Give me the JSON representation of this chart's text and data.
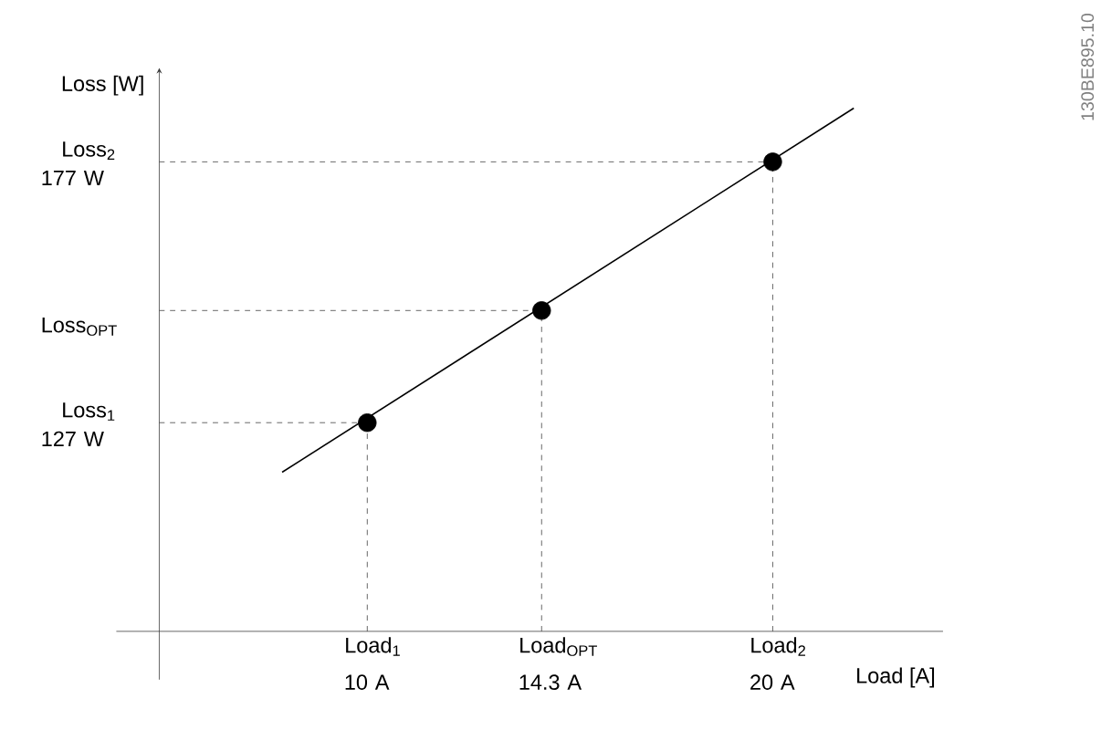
{
  "chart_data": {
    "type": "line",
    "xlabel": "Load [A]",
    "ylabel": "Loss [W]",
    "xlim": [
      4.87,
      24.2
    ],
    "ylim": [
      87,
      195
    ],
    "xticks": [
      {
        "value": 10,
        "label": "10 A"
      },
      {
        "value": 14.3,
        "label": "14.3 A"
      },
      {
        "value": 20,
        "label": "20 A"
      }
    ],
    "yticks": [
      {
        "value": 127,
        "label": "127 W"
      },
      {
        "value": 148.5,
        "label": "Loss$_{OPT}$"
      },
      {
        "value": 177,
        "label": "177 W"
      }
    ],
    "series": [
      {
        "color": "#000000",
        "x": [
          7.9,
          22.0
        ],
        "values": [
          117.5,
          187.3
        ],
        "marker": "none",
        "line_style": "solid"
      },
      {
        "type": "scatter",
        "color": "#000000",
        "x": [
          10,
          14.3,
          20
        ],
        "values": [
          127,
          148.5,
          177
        ],
        "marker": "circle"
      }
    ],
    "ref_lines": [
      {
        "axis": "x",
        "value": 10,
        "line_style": "dashed"
      },
      {
        "axis": "x",
        "value": 14.3,
        "line_style": "dashed"
      },
      {
        "axis": "x",
        "value": 20,
        "line_style": "dashed"
      },
      {
        "axis": "y",
        "value": 127,
        "line_style": "dashed"
      },
      {
        "axis": "y",
        "value": 148.5,
        "line_style": "dashed"
      },
      {
        "axis": "y",
        "value": 177,
        "line_style": "dashed"
      }
    ],
    "grid": false,
    "annotations": [
      {
        "text": "Load$_{1}$",
        "x": 10,
        "y": 87
      },
      {
        "text": "Load$_{OPT}$",
        "x": 14.3,
        "y": 87
      },
      {
        "text": "Load$_{2}$",
        "x": 20,
        "y": 87
      },
      {
        "text": "Loss$_{1}$",
        "x": 4.87,
        "y": 127
      },
      {
        "text": "Loss$_{2}$",
        "x": 4.87,
        "y": 177
      },
      "130BE895.10"
    ]
  }
}
